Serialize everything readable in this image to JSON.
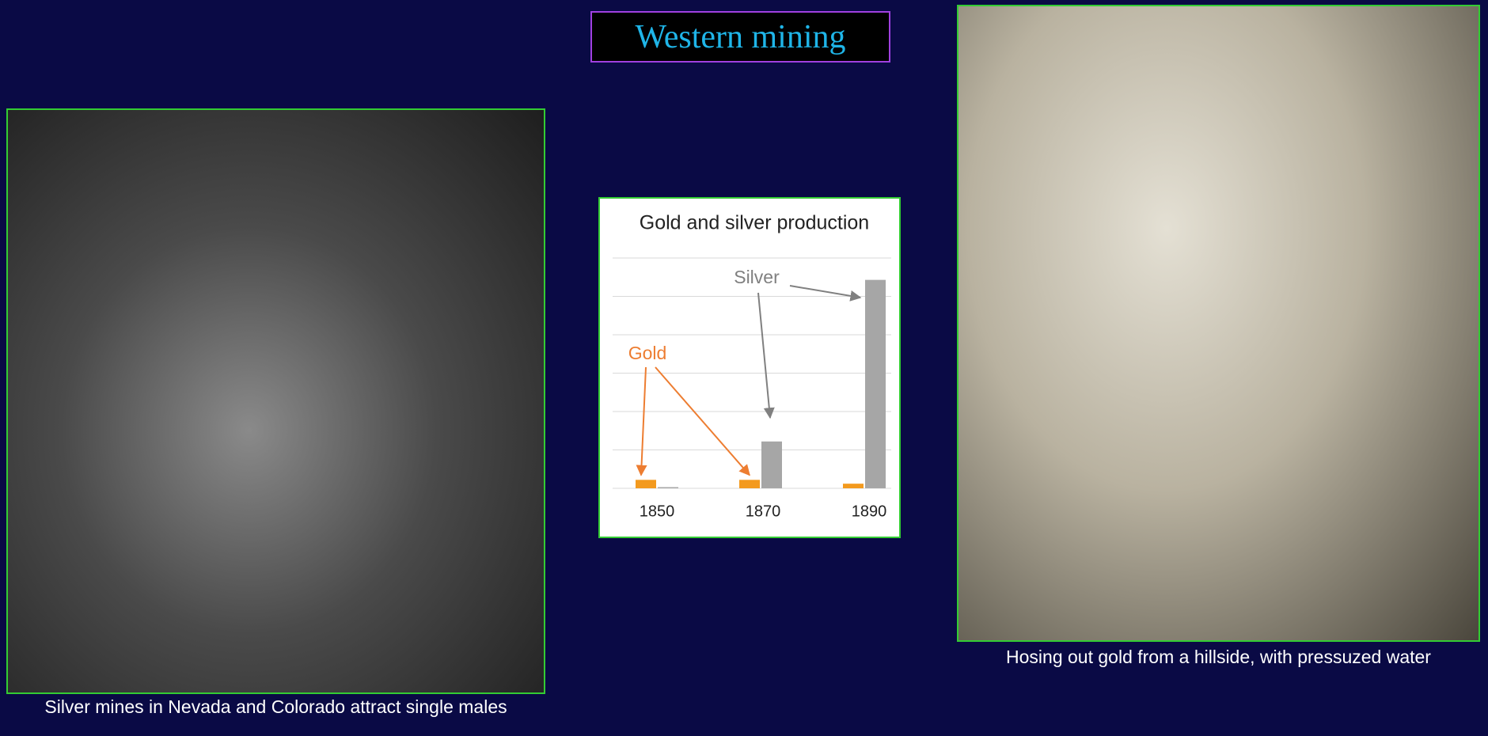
{
  "title": "Western mining",
  "left_image": {
    "caption": "Silver mines in Nevada and Colorado attract single males"
  },
  "right_image": {
    "caption": "Hosing out gold from a hillside, with pressuzed water"
  },
  "chart_data": {
    "type": "bar",
    "title": "Gold and silver production",
    "categories": [
      "1850",
      "1870",
      "1890"
    ],
    "series": [
      {
        "name": "Gold",
        "color": "#f39a1e",
        "values": [
          0.22,
          0.22,
          0.12
        ]
      },
      {
        "name": "Silver",
        "color": "#a6a6a6",
        "values": [
          0.03,
          1.22,
          5.43
        ]
      }
    ],
    "ylim": [
      0,
      6
    ],
    "yticks": [
      0,
      1,
      2,
      3,
      4,
      5,
      6
    ],
    "ytick_labels": false,
    "grid": true
  }
}
